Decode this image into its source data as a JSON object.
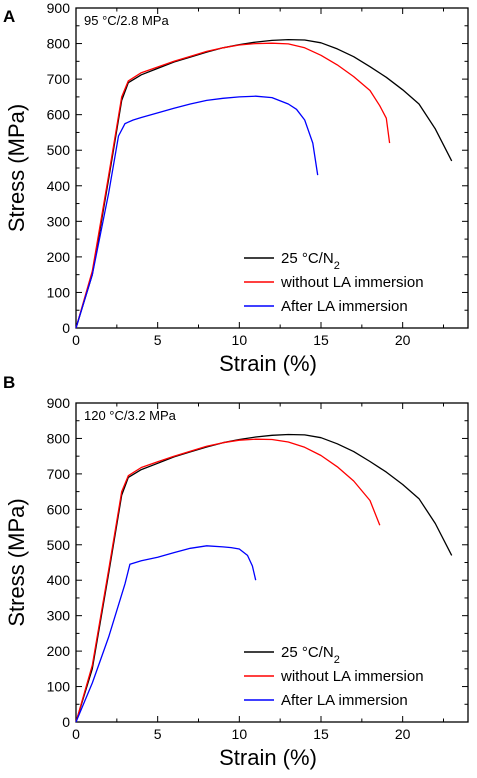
{
  "chart_data": [
    {
      "type": "line",
      "panel_label": "A",
      "condition": "95 °C/2.8 MPa",
      "xlabel": "Strain (%)",
      "ylabel": "Stress (MPa)",
      "xlim": [
        0,
        24
      ],
      "ylim": [
        0,
        900
      ],
      "xticks": [
        "0",
        "5",
        "10",
        "15",
        "20"
      ],
      "yticks": [
        "0",
        "100",
        "200",
        "300",
        "400",
        "500",
        "600",
        "700",
        "800",
        "900"
      ],
      "grid": false,
      "legend_position": "bottom-right",
      "series": [
        {
          "name": "25 °C/N2",
          "color": "#000000",
          "x": [
            0,
            1,
            2,
            2.8,
            3.2,
            4,
            5,
            6,
            7,
            8,
            9,
            10,
            11,
            12,
            13,
            14,
            15,
            16,
            17,
            18,
            19,
            20,
            21,
            22,
            23
          ],
          "y": [
            0,
            150,
            420,
            640,
            690,
            712,
            730,
            748,
            762,
            776,
            788,
            797,
            804,
            809,
            811,
            810,
            802,
            785,
            763,
            735,
            705,
            670,
            630,
            560,
            470
          ]
        },
        {
          "name": "without LA immersion",
          "color": "#ff0000",
          "x": [
            0,
            1,
            2,
            2.8,
            3.2,
            4,
            5,
            6,
            7,
            8,
            9,
            10,
            11,
            12,
            13,
            14,
            15,
            16,
            17,
            18,
            18.6,
            19.0,
            19.2
          ],
          "y": [
            0,
            160,
            430,
            650,
            695,
            718,
            734,
            750,
            764,
            778,
            788,
            796,
            800,
            801,
            799,
            788,
            767,
            740,
            707,
            668,
            625,
            590,
            520
          ]
        },
        {
          "name": "After LA immersion",
          "color": "#0000ff",
          "x": [
            0,
            1,
            2,
            2.6,
            3,
            3.5,
            4,
            5,
            6,
            7,
            8,
            9,
            10,
            11,
            12,
            13,
            13.5,
            14,
            14.5,
            14.8
          ],
          "y": [
            0,
            150,
            380,
            540,
            575,
            585,
            592,
            605,
            618,
            630,
            640,
            646,
            650,
            652,
            648,
            630,
            615,
            585,
            520,
            430
          ]
        }
      ]
    },
    {
      "type": "line",
      "panel_label": "B",
      "condition": "120 °C/3.2 MPa",
      "xlabel": "Strain (%)",
      "ylabel": "Stress (MPa)",
      "xlim": [
        0,
        24
      ],
      "ylim": [
        0,
        900
      ],
      "xticks": [
        "0",
        "5",
        "10",
        "15",
        "20"
      ],
      "yticks": [
        "0",
        "100",
        "200",
        "300",
        "400",
        "500",
        "600",
        "700",
        "800",
        "900"
      ],
      "grid": false,
      "legend_position": "bottom-right",
      "series": [
        {
          "name": "25 °C/N2",
          "color": "#000000",
          "x": [
            0,
            1,
            2,
            2.8,
            3.2,
            4,
            5,
            6,
            7,
            8,
            9,
            10,
            11,
            12,
            13,
            14,
            15,
            16,
            17,
            18,
            19,
            20,
            21,
            22,
            23
          ],
          "y": [
            0,
            150,
            420,
            640,
            690,
            712,
            730,
            748,
            762,
            776,
            788,
            797,
            804,
            809,
            811,
            810,
            802,
            785,
            763,
            735,
            705,
            670,
            630,
            560,
            470
          ]
        },
        {
          "name": "without LA immersion",
          "color": "#ff0000",
          "x": [
            0,
            1,
            2,
            2.8,
            3.2,
            4,
            5,
            6,
            7,
            8,
            9,
            10,
            11,
            12,
            13,
            14,
            15,
            16,
            17,
            18,
            18.6
          ],
          "y": [
            0,
            160,
            430,
            650,
            695,
            718,
            734,
            750,
            764,
            778,
            788,
            795,
            798,
            797,
            790,
            775,
            752,
            720,
            680,
            625,
            555
          ]
        },
        {
          "name": "After LA immersion",
          "color": "#0000ff",
          "x": [
            0,
            1,
            2,
            3,
            3.3,
            4,
            5,
            6,
            7,
            8,
            9,
            9.5,
            10,
            10.5,
            10.8,
            11.0
          ],
          "y": [
            0,
            110,
            240,
            390,
            445,
            455,
            465,
            478,
            490,
            497,
            494,
            492,
            488,
            470,
            440,
            400
          ]
        }
      ]
    }
  ]
}
